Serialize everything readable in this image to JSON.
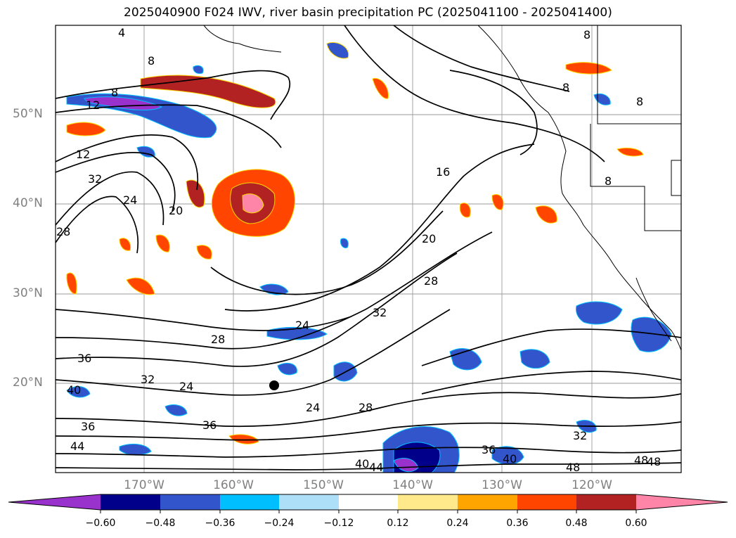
{
  "title": "2025040900 F024 IWV, river basin precipitation PC (2025041100 - 2025041400)",
  "map": {
    "lat_labels": [
      "50°N",
      "40°N",
      "30°N",
      "20°N"
    ],
    "lon_labels": [
      "170°W",
      "160°W",
      "150°W",
      "140°W",
      "130°W",
      "120°W"
    ],
    "contour_labels": [
      "4",
      "8",
      "8",
      "8",
      "8",
      "12",
      "12",
      "16",
      "20",
      "20",
      "24",
      "24",
      "24",
      "28",
      "28",
      "28",
      "32",
      "32",
      "32",
      "36",
      "36",
      "36",
      "40",
      "40",
      "44",
      "48",
      "48",
      "8",
      "8",
      "24",
      "28",
      "32",
      "36",
      "40",
      "44",
      "48"
    ]
  },
  "colorbar": {
    "ticks": [
      "−0.60",
      "−0.48",
      "−0.36",
      "−0.24",
      "−0.12",
      "0.12",
      "0.24",
      "0.36",
      "0.48",
      "0.60"
    ],
    "colors": [
      "#9932CC",
      "#00008B",
      "#3355CC",
      "#00BFFF",
      "#ADE0F8",
      "#FFFFFF",
      "#FFE98A",
      "#FFA500",
      "#FF4500",
      "#B22222",
      "#FF85A8"
    ]
  }
}
